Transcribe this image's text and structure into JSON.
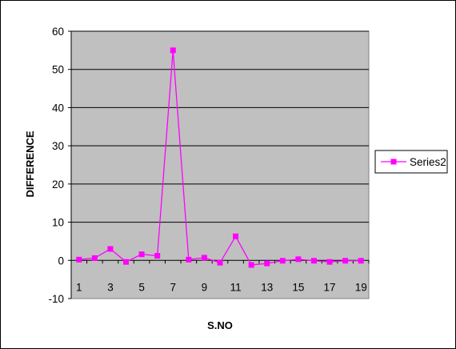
{
  "chart_data": {
    "type": "line",
    "title": "",
    "xlabel": "S.NO",
    "ylabel": "DIFFERENCE",
    "x": [
      1,
      2,
      3,
      4,
      5,
      6,
      7,
      8,
      9,
      10,
      11,
      12,
      13,
      14,
      15,
      16,
      17,
      18,
      19
    ],
    "x_tick_labels": [
      "1",
      "3",
      "5",
      "7",
      "9",
      "11",
      "13",
      "15",
      "17",
      "19"
    ],
    "ylim": [
      -10,
      60
    ],
    "y_ticks": [
      -10,
      0,
      10,
      20,
      30,
      40,
      50,
      60
    ],
    "grid": true,
    "legend_position": "right",
    "series": [
      {
        "name": "Series2",
        "color": "#FF00FF",
        "values": [
          0.2,
          0.6,
          3.0,
          -0.4,
          1.6,
          1.2,
          55.0,
          0.2,
          0.7,
          -0.6,
          6.3,
          -1.2,
          -0.8,
          -0.1,
          0.3,
          -0.1,
          -0.4,
          -0.1,
          -0.1
        ]
      }
    ],
    "plot_background": "#C0C0C0"
  }
}
